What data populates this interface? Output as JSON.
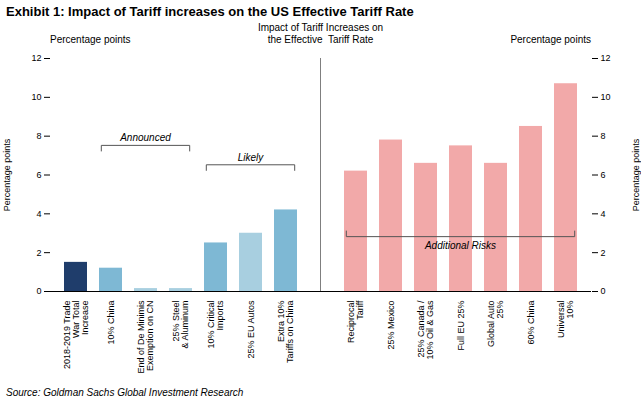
{
  "chart_data": {
    "type": "bar",
    "title": "Exhibit 1: Impact of Tariff increases on the US Effective Tariff Rate",
    "subtitle": "Impact of Tariff Increases on\nthe Effective  Tariff Rate",
    "source": "Source: Goldman Sachs Global Investment Research",
    "ylabel": "Percentage points",
    "y2label": "Percentage points",
    "categories": [
      "2018-2019 Trade\nWar Total\nIncrease",
      "10% China",
      "End of De Minimis\nExemption on CN",
      "25% Steel\n& Aluminum",
      "10% Critical\nImports",
      "25% EU Autos",
      "Extra 10%\nTariffs on China",
      null,
      "Reciprocal\nTariff",
      "25% Mexico",
      "25% Canada /\n10% Oil & Gas",
      "Full EU 25%",
      "Global Auto\n25%",
      "60% China",
      "Universal\n10%"
    ],
    "values": [
      1.5,
      1.2,
      0.15,
      0.15,
      2.5,
      3.0,
      4.2,
      null,
      6.2,
      7.8,
      6.6,
      7.5,
      6.6,
      8.5,
      10.7
    ],
    "colors": [
      "#1f3d6b",
      "#7eb8d4",
      "#a8cfe0",
      "#a8cfe0",
      "#7eb8d4",
      "#a8cfe0",
      "#7eb8d4",
      null,
      "#f2a9a9",
      "#f2a9a9",
      "#f2a9a9",
      "#f2a9a9",
      "#f2a9a9",
      "#f2a9a9",
      "#f2a9a9"
    ],
    "ylim": [
      0,
      12
    ],
    "yticks": [
      0,
      2,
      4,
      6,
      8,
      10,
      12
    ],
    "y2lim": [
      0,
      12
    ],
    "y2ticks": [
      0,
      2,
      4,
      6,
      8,
      10,
      12
    ],
    "grid": false,
    "annotations": [
      {
        "text": "Announced",
        "from": "10% China",
        "to": "25% Steel\n& Aluminum",
        "y": 7.5,
        "side": "above"
      },
      {
        "text": "Likely",
        "from": "10% Critical\nImports",
        "to": "Extra 10%\nTariffs on China",
        "y": 6.5,
        "side": "above"
      },
      {
        "text": "Additional Risks",
        "from": "Reciprocal\nTariff",
        "to": "Universal\n10%",
        "y": 2.8,
        "side": "below"
      }
    ]
  }
}
